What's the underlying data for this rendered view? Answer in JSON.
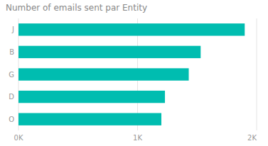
{
  "chart_data": {
    "type": "bar",
    "orientation": "horizontal",
    "title": "Number of emails sent par Entity",
    "categories": [
      "J",
      "B",
      "G",
      "D",
      "O"
    ],
    "values": [
      1900,
      1530,
      1430,
      1230,
      1200
    ],
    "color": "#00BDB0",
    "xlim": [
      0,
      2000
    ],
    "xticks": [
      {
        "value": 0,
        "label": "0K"
      },
      {
        "value": 1000,
        "label": "1K"
      },
      {
        "value": 2000,
        "label": "2K"
      }
    ],
    "grid": true
  }
}
